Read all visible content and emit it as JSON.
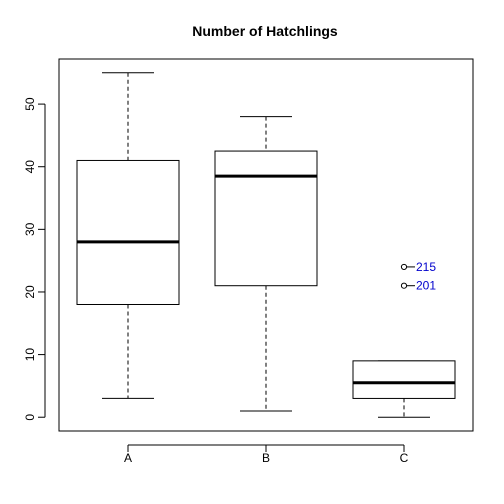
{
  "chart_data": {
    "type": "boxplot",
    "title": "Number of Hatchlings",
    "xlabel": "",
    "ylabel": "",
    "categories": [
      "A",
      "B",
      "C"
    ],
    "ylim": [
      -2.2,
      57.2
    ],
    "yticks": [
      0,
      10,
      20,
      30,
      40,
      50
    ],
    "ytick_labels": [
      "0",
      "10",
      "20",
      "30",
      "40",
      "50"
    ],
    "boxes": [
      {
        "category": "A",
        "whisker_low": 3,
        "q1": 18,
        "median": 28,
        "q3": 41,
        "whisker_high": 55
      },
      {
        "category": "B",
        "whisker_low": 1,
        "q1": 21,
        "median": 38.5,
        "q3": 42.5,
        "whisker_high": 48
      },
      {
        "category": "C",
        "whisker_low": 0,
        "q1": 3,
        "median": 5.5,
        "q3": 9,
        "whisker_high": 9
      }
    ],
    "outliers": [
      {
        "category": "C",
        "value": 24,
        "label": "215"
      },
      {
        "category": "C",
        "value": 21,
        "label": "201"
      }
    ],
    "outlier_label_color": "#0000cc",
    "grid": false
  }
}
